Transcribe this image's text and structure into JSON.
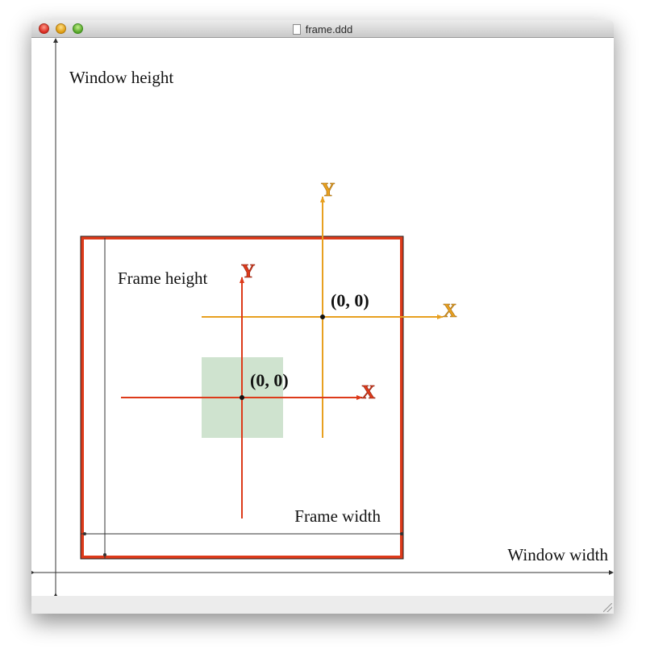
{
  "window": {
    "title": "frame.ddd"
  },
  "labels": {
    "window_height": "Window height",
    "window_width": "Window width",
    "frame_height": "Frame height",
    "frame_width": "Frame width"
  },
  "frame_axes": {
    "x_label": "X",
    "y_label": "Y",
    "origin_label": "(0, 0)",
    "color": "#e8a020"
  },
  "object_axes": {
    "x_label": "X",
    "y_label": "Y",
    "origin_label": "(0, 0)",
    "color": "#dd3a1a"
  },
  "colors": {
    "frame_border": "#dd3a1a",
    "object_fill": "#cfe3cf",
    "measure_lines": "#333333"
  },
  "icons": {
    "document": "document-icon",
    "resize": "resize-grip-icon"
  }
}
